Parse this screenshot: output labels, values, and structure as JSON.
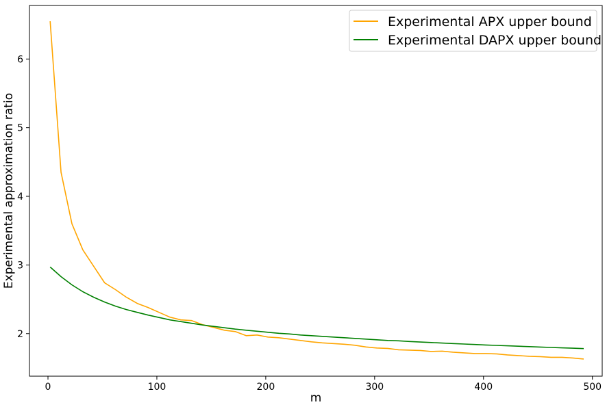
{
  "chart_data": {
    "type": "line",
    "title": "",
    "xlabel": "m",
    "ylabel": "Experimental approximation ratio",
    "xlim": [
      -17,
      509
    ],
    "ylim": [
      1.38,
      6.78
    ],
    "xticks": [
      0,
      100,
      200,
      300,
      400,
      500
    ],
    "yticks": [
      2,
      3,
      4,
      5,
      6
    ],
    "grid": false,
    "legend": "top-right",
    "series": [
      {
        "name": "Experimental APX upper bound",
        "color": "#FFA500",
        "x": [
          2,
          12,
          22,
          32,
          42,
          52,
          62,
          72,
          82,
          92,
          102,
          112,
          122,
          132,
          142,
          152,
          162,
          172,
          182,
          192,
          202,
          212,
          222,
          232,
          242,
          252,
          262,
          272,
          282,
          292,
          302,
          312,
          322,
          332,
          342,
          352,
          362,
          372,
          382,
          392,
          402,
          412,
          422,
          432,
          442,
          452,
          462,
          472,
          482,
          492
        ],
        "y": [
          6.55,
          4.35,
          3.6,
          3.22,
          2.98,
          2.74,
          2.64,
          2.53,
          2.44,
          2.38,
          2.31,
          2.24,
          2.2,
          2.19,
          2.13,
          2.09,
          2.05,
          2.03,
          1.97,
          1.98,
          1.95,
          1.94,
          1.92,
          1.9,
          1.88,
          1.865,
          1.855,
          1.845,
          1.83,
          1.805,
          1.79,
          1.785,
          1.765,
          1.76,
          1.755,
          1.74,
          1.745,
          1.73,
          1.72,
          1.71,
          1.71,
          1.705,
          1.69,
          1.68,
          1.67,
          1.665,
          1.655,
          1.655,
          1.645,
          1.63
        ]
      },
      {
        "name": "Experimental DAPX upper bound",
        "color": "#008000",
        "x": [
          2,
          12,
          22,
          32,
          42,
          52,
          62,
          72,
          82,
          92,
          102,
          112,
          122,
          132,
          142,
          152,
          162,
          172,
          182,
          192,
          202,
          212,
          222,
          232,
          242,
          252,
          262,
          272,
          282,
          292,
          302,
          312,
          322,
          332,
          342,
          352,
          362,
          372,
          382,
          392,
          402,
          412,
          422,
          432,
          442,
          452,
          462,
          472,
          482,
          492
        ],
        "y": [
          2.97,
          2.83,
          2.71,
          2.61,
          2.53,
          2.46,
          2.4,
          2.35,
          2.31,
          2.27,
          2.235,
          2.2,
          2.175,
          2.15,
          2.125,
          2.105,
          2.085,
          2.065,
          2.05,
          2.035,
          2.02,
          2.005,
          1.995,
          1.98,
          1.97,
          1.96,
          1.95,
          1.94,
          1.93,
          1.92,
          1.91,
          1.9,
          1.895,
          1.885,
          1.877,
          1.87,
          1.862,
          1.855,
          1.848,
          1.841,
          1.834,
          1.828,
          1.822,
          1.816,
          1.81,
          1.804,
          1.798,
          1.792,
          1.787,
          1.782
        ]
      }
    ]
  }
}
